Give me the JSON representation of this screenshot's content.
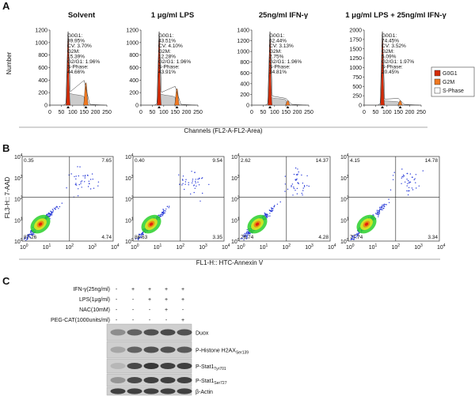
{
  "panel_a": {
    "label": "A",
    "y_axis_title": "Number",
    "x_axis_title": "Channels (FL2-A-FL2-Area)",
    "xticks": [
      0,
      50,
      100,
      150,
      200,
      250
    ],
    "legend": [
      "G0G1",
      "G2M",
      "S-Phase"
    ],
    "plots": [
      {
        "title": "Solvent",
        "yticks": [
          0,
          200,
          400,
          600,
          800,
          1000,
          1200
        ],
        "stats": [
          "G0G1:",
          "39.95%",
          "CV: 3.70%",
          "G2M:",
          "15.39%",
          "G2/G1: 1.96%",
          "S-Phase:",
          "44.66%"
        ]
      },
      {
        "title": "1  μg/ml LPS",
        "yticks": [
          0,
          200,
          400,
          600,
          800,
          1000,
          1200
        ],
        "stats": [
          "G0G1:",
          "43.51%",
          "CV: 4.10%",
          "G2M:",
          "12.28%",
          "G2/G1: 1.96%",
          "S-Phase:",
          "43.91%"
        ]
      },
      {
        "title": "25ng/ml IFN-γ",
        "yticks": [
          0,
          200,
          400,
          600,
          800,
          1000,
          1200,
          1400
        ],
        "stats": [
          "G0G1:",
          "62.44%",
          "CV: 3.13%",
          "G2M:",
          "2.75%",
          "G2/G1: 1.96%",
          "S-Phase:",
          "34.81%"
        ]
      },
      {
        "title": "1  μg/ml LPS + 25ng/ml IFN-γ",
        "yticks": [
          0,
          250,
          500,
          750,
          1000,
          1250,
          1500,
          1750,
          2000
        ],
        "stats": [
          "G0G1:",
          "74.45%",
          "CV: 3.52%",
          "G2M:",
          "5.09%",
          "G2/G1: 1.97%",
          "S-Phase:",
          "20.45%"
        ]
      }
    ]
  },
  "panel_b": {
    "label": "B",
    "y_axis_title": "FL3-H:: 7-AAD",
    "x_axis_title": "FL1-H:: HTC-Annexin V",
    "tick_base": "10",
    "tick_exponents": [
      0,
      1,
      2,
      3,
      4
    ],
    "plots": [
      {
        "quadrants": [
          "0.35",
          "7.65",
          "87.26",
          "4.74"
        ]
      },
      {
        "quadrants": [
          "0.40",
          "9.54",
          "86.63",
          "3.35"
        ]
      },
      {
        "quadrants": [
          "2.62",
          "14.37",
          "78.74",
          "4.28"
        ]
      },
      {
        "quadrants": [
          "4.15",
          "14.78",
          "77.74",
          "3.34"
        ]
      }
    ]
  },
  "panel_c": {
    "label": "C",
    "treatments": [
      {
        "label": "IFN-γ(25ng/ml)",
        "lanes": [
          "-",
          "+",
          "+",
          "+",
          "+"
        ]
      },
      {
        "label": "LPS(1μg/ml)",
        "lanes": [
          "-",
          "-",
          "+",
          "+",
          "+"
        ]
      },
      {
        "label": "NAC(10mM)",
        "lanes": [
          "-",
          "-",
          "-",
          "+",
          "-"
        ]
      },
      {
        "label": "PEG-CAT(1000units/ml)",
        "lanes": [
          "-",
          "-",
          "-",
          "-",
          "+"
        ]
      }
    ],
    "blots": [
      {
        "name": "Duox"
      },
      {
        "name": "P-Histone H2AX",
        "subscript": "Ser139"
      },
      {
        "name": "P-Stat1",
        "subscript": "Tyr701"
      },
      {
        "name": "P-Stat1",
        "subscript": "Ser727"
      },
      {
        "name": "β-Actin"
      }
    ]
  }
}
